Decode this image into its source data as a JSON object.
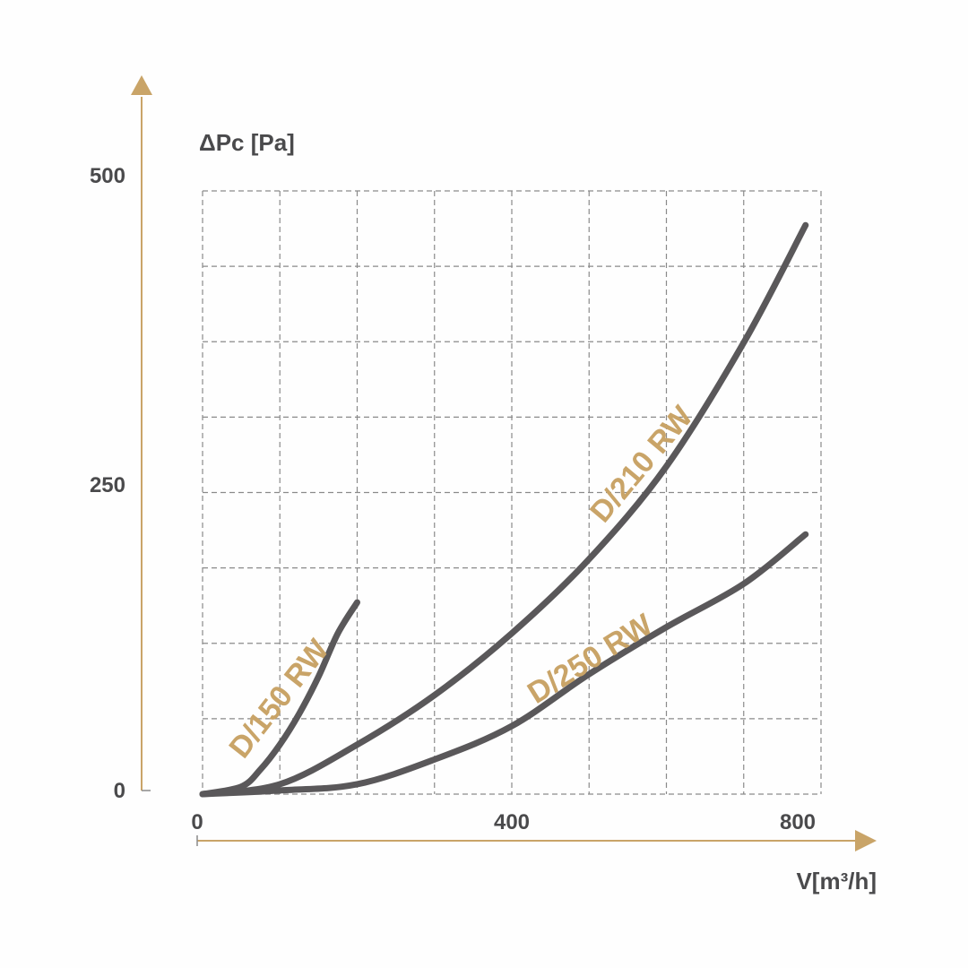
{
  "colors": {
    "background": "#fefefe",
    "curve": "#5a585a",
    "accent": "#c9a468",
    "grid": "#8a8a8a",
    "text": "#4a4a4c"
  },
  "chart_data": {
    "type": "line",
    "xlabel": "V[m³/h]",
    "ylabel": "ΔPc [Pa]",
    "xlim": [
      0,
      800
    ],
    "ylim": [
      0,
      500
    ],
    "x_ticks": [
      "0",
      "400",
      "800"
    ],
    "y_ticks": [
      "0",
      "250",
      "500"
    ],
    "grid": true,
    "grid_style": "dashed",
    "series": [
      {
        "name": "D/150 RW",
        "x": [
          0,
          50,
          75,
          100,
          125,
          150,
          175,
          200
        ],
        "y": [
          0,
          6,
          20,
          40,
          65,
          95,
          130,
          155
        ]
      },
      {
        "name": "D/210 RW",
        "x": [
          0,
          100,
          200,
          300,
          400,
          500,
          600,
          700,
          780
        ],
        "y": [
          0,
          8,
          40,
          80,
          130,
          190,
          265,
          365,
          460
        ]
      },
      {
        "name": "D/250 RW",
        "x": [
          0,
          100,
          200,
          300,
          400,
          500,
          600,
          700,
          780
        ],
        "y": [
          0,
          3,
          8,
          28,
          55,
          97,
          135,
          170,
          210
        ]
      }
    ]
  }
}
